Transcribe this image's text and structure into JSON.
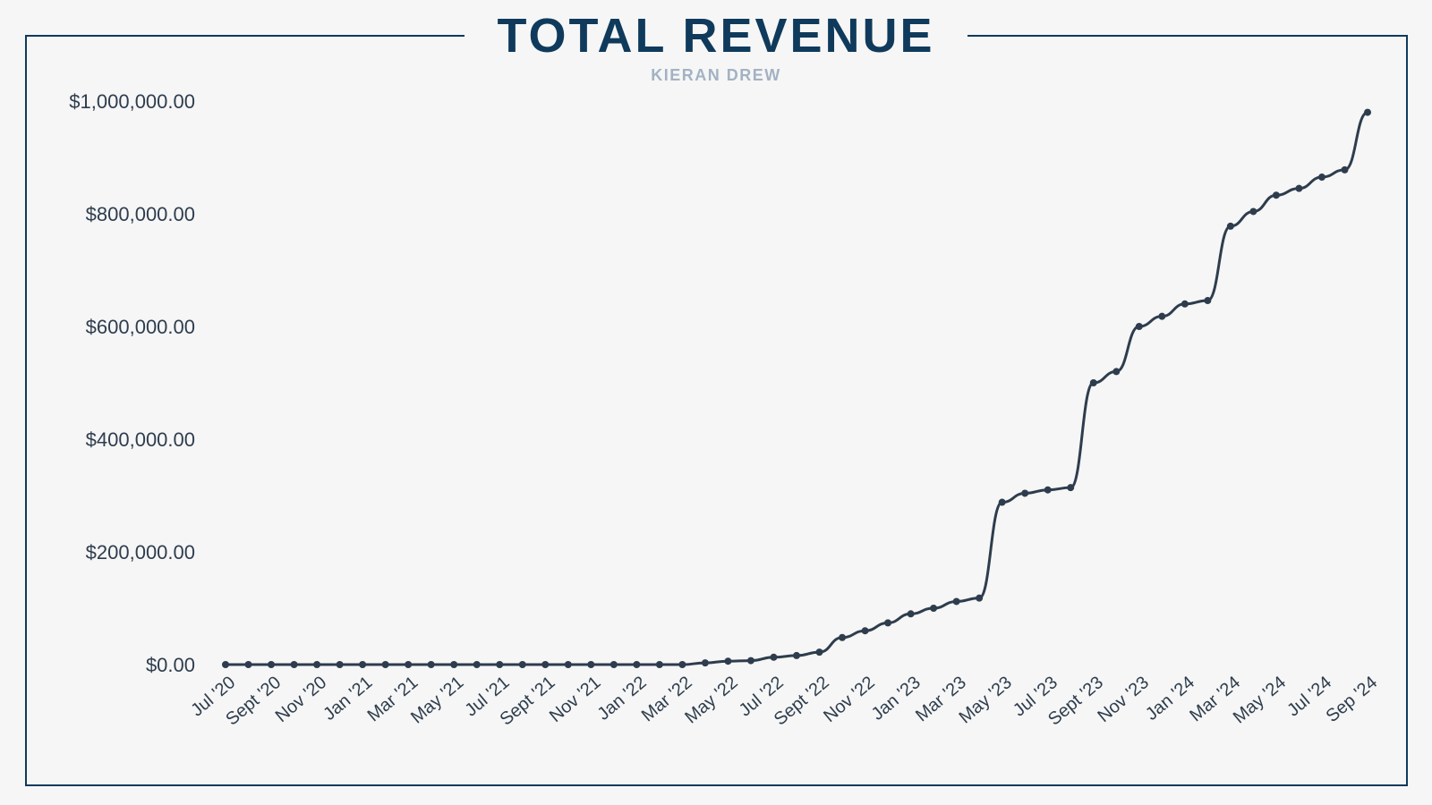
{
  "header": {
    "title": "TOTAL REVENUE",
    "subtitle": "KIERAN DREW"
  },
  "colors": {
    "frame": "#0f3a5c",
    "title": "#0f3a5c",
    "subtitle": "#a3b2c3",
    "line": "#2e3d4d",
    "background": "#f6f6f6"
  },
  "chart_data": {
    "type": "line",
    "title": "TOTAL REVENUE",
    "subtitle": "KIERAN DREW",
    "xlabel": "",
    "ylabel": "",
    "ylim": [
      0,
      1000000
    ],
    "grid": false,
    "legend": "none",
    "yticks": [
      0,
      200000,
      400000,
      600000,
      800000,
      1000000
    ],
    "ytick_labels": [
      "$0.00",
      "$200,000.00",
      "$400,000.00",
      "$600,000.00",
      "$800,000.00",
      "$1,000,000.00"
    ],
    "xtick_labels": [
      "Jul '20",
      "Sept '20",
      "Nov '20",
      "Jan '21",
      "Mar '21",
      "May '21",
      "Jul '21",
      "Sept '21",
      "Nov '21",
      "Jan '22",
      "Mar '22",
      "May '22",
      "Jul '22",
      "Sept '22",
      "Nov '22",
      "Jan '23",
      "Mar '23",
      "May '23",
      "Jul '23",
      "Sept '23",
      "Nov '23",
      "Jan '24",
      "Mar '24",
      "May '24",
      "Jul '24",
      "Sep '24"
    ],
    "series": [
      {
        "values": [
          0,
          0,
          0,
          0,
          0,
          0,
          0,
          0,
          0,
          0,
          0,
          0,
          0,
          0,
          0,
          0,
          0,
          0,
          0,
          0,
          0,
          3000,
          6000,
          7000,
          13000,
          16000,
          22000,
          48000,
          60000,
          74000,
          90000,
          100000,
          112000,
          118000,
          288000,
          304000,
          310000,
          314000,
          500000,
          520000,
          600000,
          618000,
          640000,
          646000,
          778000,
          804000,
          833000,
          845000,
          865000,
          878000,
          980000
        ]
      }
    ]
  }
}
